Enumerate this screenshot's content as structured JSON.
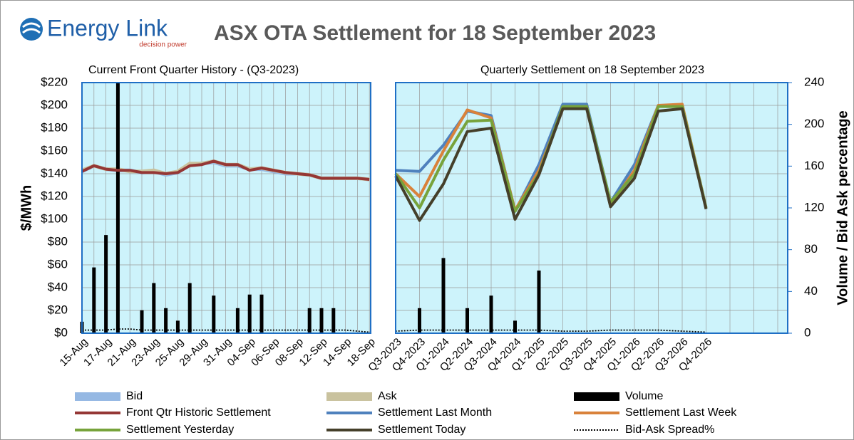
{
  "logo": {
    "name": "Energy Link",
    "tagline": "decision power"
  },
  "chart_data": {
    "type": "combo",
    "title": "ASX OTA Settlement for 18 September 2023",
    "subtitles": [
      "Current Front Quarter History - (Q3-2023)",
      "Quarterly Settlement on 18 September 2023"
    ],
    "ylabel": "$/MWh",
    "y2label": "Volume / Bid Ask percentage",
    "categories": [
      "15-Aug",
      null,
      "17-Aug",
      null,
      "21-Aug",
      null,
      "23-Aug",
      null,
      "25-Aug",
      null,
      "29-Aug",
      null,
      "31-Aug",
      null,
      "04-Sep",
      null,
      "06-Sep",
      null,
      "08-Sep",
      null,
      "12-Sep",
      null,
      "14-Sep",
      null,
      "18-Sep",
      "Q3-2023",
      "Q4-2023",
      "Q1-2024",
      "Q2-2024",
      "Q3-2024",
      "Q4-2024",
      "Q1-2025",
      "Q2-2025",
      "Q3-2025",
      "Q4-2025",
      "Q1-2026",
      "Q2-2026",
      "Q3-2026",
      "Q4-2026"
    ],
    "ylim": [
      0,
      220
    ],
    "yticks": [
      {
        "value": 0,
        "label": "$0"
      },
      {
        "value": 20,
        "label": "$20"
      },
      {
        "value": 40,
        "label": "$40"
      },
      {
        "value": 60,
        "label": "$60"
      },
      {
        "value": 80,
        "label": "$80"
      },
      {
        "value": 100,
        "label": "$100"
      },
      {
        "value": 120,
        "label": "$120"
      },
      {
        "value": 140,
        "label": "$140"
      },
      {
        "value": 160,
        "label": "$160"
      },
      {
        "value": 180,
        "label": "$180"
      },
      {
        "value": 200,
        "label": "$200"
      },
      {
        "value": 220,
        "label": "$220"
      }
    ],
    "y2lim": [
      0,
      240
    ],
    "y2ticks": [
      0,
      40,
      80,
      120,
      160,
      200,
      240
    ],
    "grid": true,
    "series": [
      {
        "name": "Bid",
        "kind": "band-line",
        "color": "#95b8e3",
        "values": [
          142,
          147,
          144,
          143,
          143,
          141,
          142,
          139,
          141,
          148,
          149,
          150,
          147,
          147,
          144,
          144,
          142,
          140,
          140,
          139,
          136,
          136,
          136,
          136,
          135,
          null,
          null,
          null,
          null,
          null,
          null,
          null,
          null,
          null,
          null,
          null,
          null,
          null,
          null
        ]
      },
      {
        "name": "Ask",
        "kind": "band-line",
        "color": "#c9c29e",
        "values": [
          143,
          147,
          144,
          144,
          142,
          142,
          143,
          140,
          142,
          149,
          149,
          151,
          148,
          148,
          144,
          145,
          143,
          141,
          140,
          139,
          136,
          136,
          136,
          136,
          135,
          null,
          null,
          null,
          null,
          null,
          null,
          null,
          null,
          null,
          null,
          null,
          null,
          null,
          null
        ]
      },
      {
        "name": "Volume",
        "kind": "bar",
        "axis": "y2",
        "color": "#000000",
        "values": [
          11,
          63,
          94,
          240,
          0,
          22,
          48,
          24,
          12,
          48,
          0,
          36,
          0,
          24,
          37,
          37,
          0,
          0,
          0,
          24,
          24,
          24,
          0,
          0,
          0,
          0,
          24,
          72,
          24,
          36,
          12,
          60,
          0,
          0,
          0,
          0,
          0,
          0,
          0
        ]
      },
      {
        "name": "Front Qtr Historic Settlement",
        "kind": "line",
        "color": "#953735",
        "values": [
          142,
          147,
          144,
          143,
          143,
          141,
          141,
          140,
          141,
          147,
          148,
          151,
          148,
          148,
          143,
          145,
          143,
          141,
          140,
          139,
          136,
          136,
          136,
          136,
          135,
          null,
          null,
          null,
          null,
          null,
          null,
          null,
          null,
          null,
          null,
          null,
          null,
          null,
          null
        ]
      },
      {
        "name": "Settlement Last Month",
        "kind": "line",
        "color": "#4f81bd",
        "values": [
          null,
          null,
          null,
          null,
          null,
          null,
          null,
          null,
          null,
          null,
          null,
          null,
          null,
          null,
          null,
          null,
          null,
          null,
          null,
          null,
          null,
          null,
          null,
          null,
          null,
          143,
          142,
          165,
          195,
          191,
          107,
          148,
          201,
          201,
          115,
          148,
          200,
          200,
          110
        ]
      },
      {
        "name": "Settlement Last Week",
        "kind": "line",
        "color": "#d9823b",
        "values": [
          null,
          null,
          null,
          null,
          null,
          null,
          null,
          null,
          null,
          null,
          null,
          null,
          null,
          null,
          null,
          null,
          null,
          null,
          null,
          null,
          null,
          null,
          null,
          null,
          null,
          140,
          120,
          160,
          196,
          189,
          108,
          143,
          197,
          199,
          112,
          143,
          200,
          201,
          110
        ]
      },
      {
        "name": "Settlement Yesterday",
        "kind": "line",
        "color": "#77a33b",
        "values": [
          null,
          null,
          null,
          null,
          null,
          null,
          null,
          null,
          null,
          null,
          null,
          null,
          null,
          null,
          null,
          null,
          null,
          null,
          null,
          null,
          null,
          null,
          null,
          null,
          null,
          140,
          110,
          152,
          186,
          187,
          107,
          140,
          199,
          199,
          115,
          140,
          199,
          199,
          110
        ]
      },
      {
        "name": "Settlement Today",
        "kind": "line",
        "color": "#453f2a",
        "values": [
          null,
          null,
          null,
          null,
          null,
          null,
          null,
          null,
          null,
          null,
          null,
          null,
          null,
          null,
          null,
          null,
          null,
          null,
          null,
          null,
          null,
          null,
          null,
          null,
          null,
          138,
          99,
          131,
          177,
          180,
          100,
          139,
          197,
          197,
          111,
          136,
          195,
          197,
          109
        ]
      },
      {
        "name": "Bid-Ask Spread%",
        "kind": "dotted",
        "axis": "y2",
        "color": "#000000",
        "values": [
          3,
          3,
          3,
          4,
          4,
          3,
          3,
          3,
          3,
          3,
          3,
          3,
          3,
          3,
          3,
          3,
          3,
          3,
          3,
          3,
          3,
          3,
          3,
          2,
          1,
          2,
          3,
          3,
          3,
          3,
          3,
          3,
          2,
          2,
          3,
          3,
          3,
          2,
          1
        ]
      }
    ]
  }
}
